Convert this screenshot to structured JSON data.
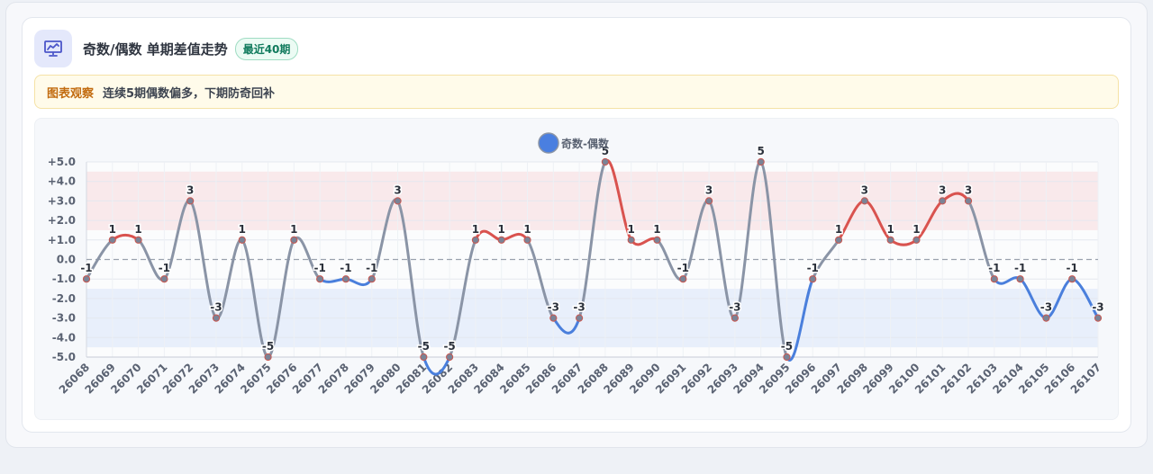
{
  "header": {
    "title": "奇数/偶数 单期差值走势",
    "badge": "最近40期",
    "icon": "trend-chart-icon"
  },
  "observation": {
    "label": "图表观察",
    "text": "连续5期偶数偏多，下期防奇回补"
  },
  "colors": {
    "line_neutral": "#8a94a6",
    "line_positive": "#d9534f",
    "line_negative": "#4a7fdc",
    "legend_dot": "#4a7fe0",
    "band_positive": "#f9e3e6",
    "band_negative": "#e3ebfa"
  },
  "chart_data": {
    "type": "line",
    "legend": [
      "奇数-偶数"
    ],
    "categories": [
      "26068",
      "26069",
      "26070",
      "26071",
      "26072",
      "26073",
      "26074",
      "26075",
      "26076",
      "26077",
      "26078",
      "26079",
      "26080",
      "26081",
      "26082",
      "26083",
      "26084",
      "26085",
      "26086",
      "26087",
      "26088",
      "26089",
      "26090",
      "26091",
      "26092",
      "26093",
      "26094",
      "26095",
      "26096",
      "26097",
      "26098",
      "26099",
      "26100",
      "26101",
      "26102",
      "26103",
      "26104",
      "26105",
      "26106",
      "26107"
    ],
    "series": [
      {
        "name": "奇数-偶数",
        "values": [
          -1,
          1,
          1,
          -1,
          3,
          -3,
          1,
          -5,
          1,
          -1,
          -1,
          -1,
          3,
          -5,
          -5,
          1,
          1,
          1,
          -3,
          -3,
          5,
          1,
          1,
          -1,
          3,
          -3,
          5,
          -5,
          -1,
          1,
          3,
          1,
          1,
          3,
          3,
          -1,
          -1,
          -3,
          -1,
          -3
        ]
      }
    ],
    "ylim": [
      -5,
      5
    ],
    "yticks": [
      "+5.0",
      "+4.0",
      "+3.0",
      "+2.0",
      "+1.0",
      "0.0",
      "-1.0",
      "-2.0",
      "-3.0",
      "-4.0",
      "-5.0"
    ],
    "bands": [
      {
        "from": 1.5,
        "to": 4.5,
        "color": "positive"
      },
      {
        "from": -4.5,
        "to": -1.5,
        "color": "negative"
      }
    ],
    "zero_line": "dashed",
    "grid": true,
    "legend_position": "top-center"
  }
}
